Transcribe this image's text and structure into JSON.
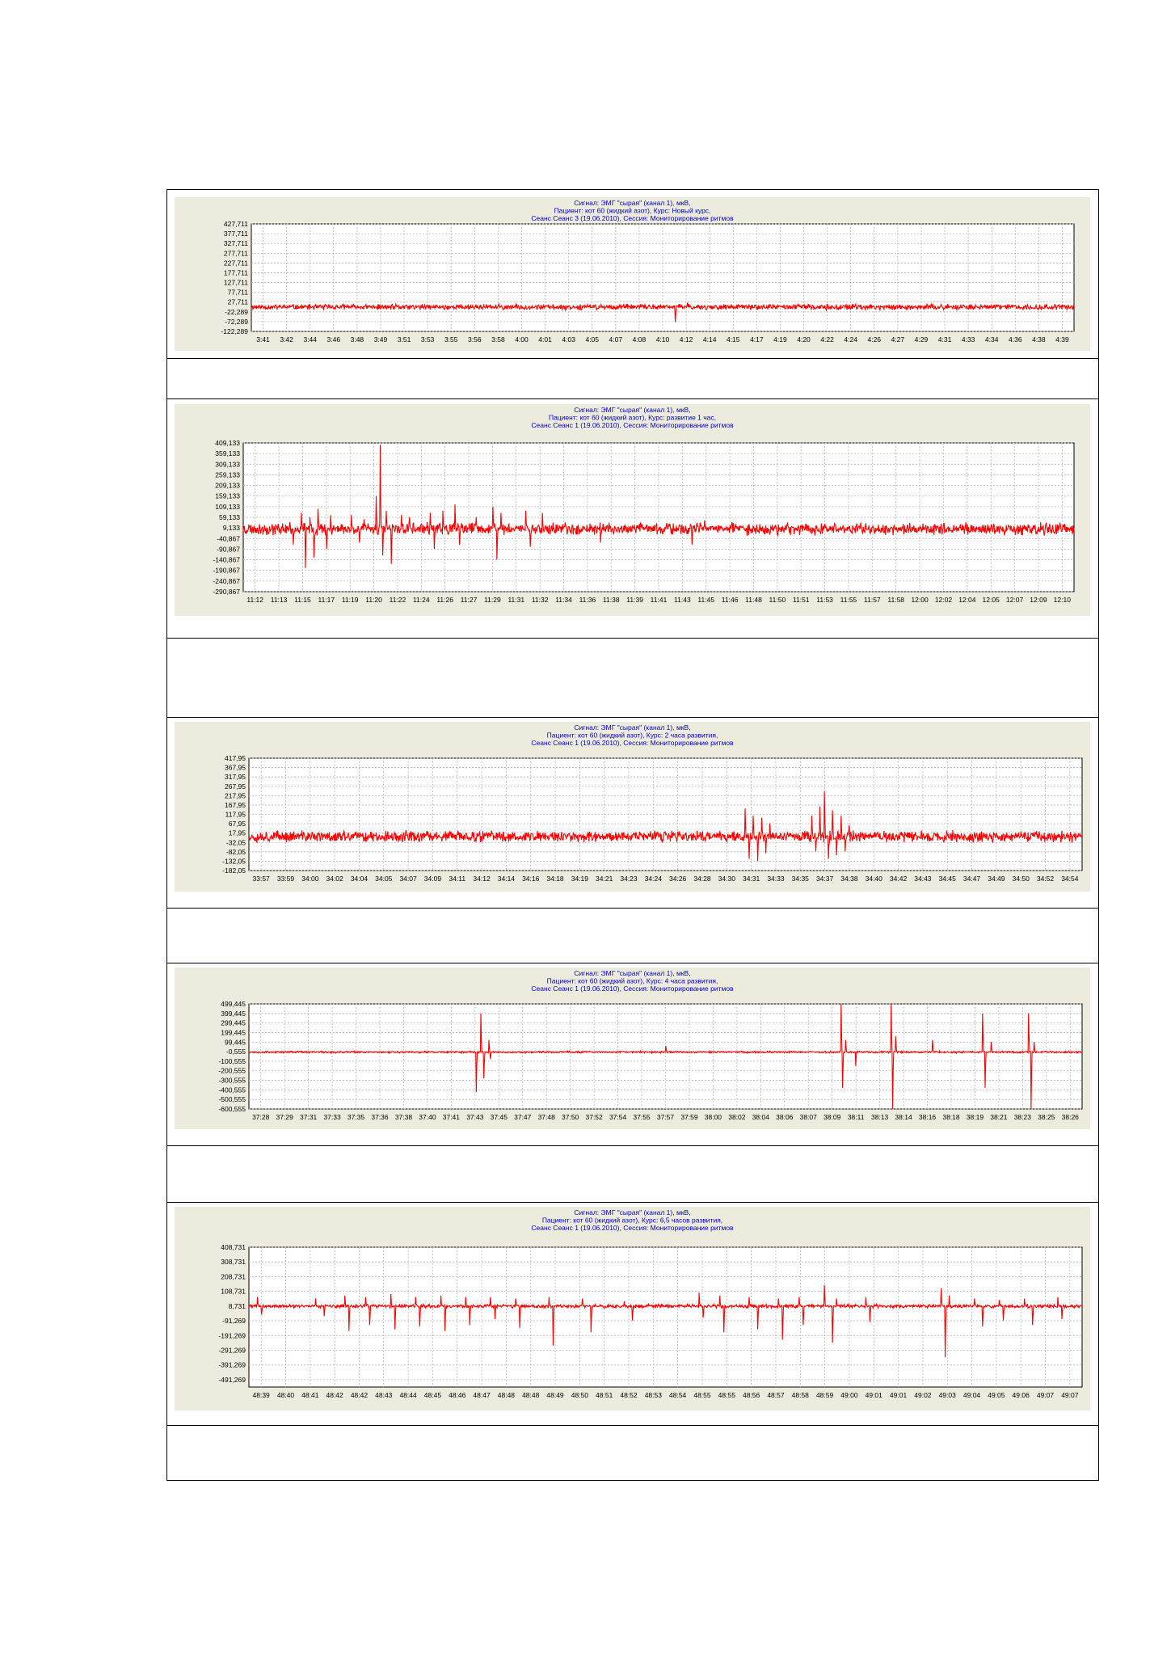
{
  "colors": {
    "signal": "#ff0000",
    "title": "#0000cc",
    "panel_bg": "#ecebdd",
    "plot_bg": "#ffffff",
    "grid": "#b8b8b8"
  },
  "chart_data": [
    {
      "type": "line",
      "title_lines": [
        "Сигнал: ЭМГ \"сырая\" (канал 1), мкВ,",
        "Пациент: кот 60 (жидкий азот), Курс: Новый курс,",
        "Сеанс Сеанс 3 (19.06.2010), Сессия:    Мониторирование  ритмов"
      ],
      "y_ticks": [
        "427,711",
        "377,711",
        "327,711",
        "277,711",
        "227,711",
        "177,711",
        "127,711",
        "77,711",
        "27,711",
        "-22,289",
        "-72,289",
        "-122,289"
      ],
      "ylim": [
        -122.289,
        427.711
      ],
      "x_ticks": [
        "3:41",
        "3:42",
        "3:44",
        "3:46",
        "3:48",
        "3:49",
        "3:51",
        "3:53",
        "3:55",
        "3:56",
        "3:58",
        "4:00",
        "4:01",
        "4:03",
        "4:05",
        "4:07",
        "4:08",
        "4:10",
        "4:12",
        "4:14",
        "4:15",
        "4:17",
        "4:19",
        "4:20",
        "4:22",
        "4:24",
        "4:26",
        "4:27",
        "4:29",
        "4:31",
        "4:33",
        "4:34",
        "4:36",
        "4:38",
        "4:39"
      ],
      "series": [
        {
          "noise": 14,
          "baseline": 2.5,
          "seed": 11,
          "spikes": [
            [
              0.515,
              -75
            ],
            [
              0.53,
              25
            ],
            [
              0.52,
              18
            ]
          ]
        }
      ],
      "grid": true
    },
    {
      "type": "line",
      "title_lines": [
        "Сигнал: ЭМГ \"сырая\" (канал 1), мкВ,",
        "Пациент: кот 60 (жидкий азот), Курс: развитие 1 час,",
        "Сеанс Сеанс 1 (19.06.2010), Сессия:    Мониторирование  ритмов"
      ],
      "y_ticks": [
        "409,133",
        "359,133",
        "309,133",
        "259,133",
        "209,133",
        "159,133",
        "109,133",
        "59,133",
        "9,133",
        "-40,867",
        "-90,867",
        "-140,867",
        "-190,867",
        "-240,867",
        "-290,867"
      ],
      "ylim": [
        -290.867,
        409.133
      ],
      "x_ticks": [
        "11:12",
        "11:13",
        "11:15",
        "11:17",
        "11:19",
        "11:20",
        "11:22",
        "11:24",
        "11:26",
        "11:27",
        "11:29",
        "11:31",
        "11:32",
        "11:34",
        "11:36",
        "11:38",
        "11:39",
        "11:41",
        "11:43",
        "11:45",
        "11:46",
        "11:48",
        "11:50",
        "11:51",
        "11:53",
        "11:55",
        "11:57",
        "11:58",
        "12:00",
        "12:02",
        "12:04",
        "12:05",
        "12:07",
        "12:09",
        "12:10"
      ],
      "series": [
        {
          "noise": 28,
          "baseline": 5,
          "seed": 23,
          "spikes": [
            [
              0.06,
              -70
            ],
            [
              0.07,
              80
            ],
            [
              0.075,
              -180
            ],
            [
              0.08,
              60
            ],
            [
              0.085,
              -130
            ],
            [
              0.09,
              100
            ],
            [
              0.1,
              -90
            ],
            [
              0.105,
              70
            ],
            [
              0.13,
              70
            ],
            [
              0.14,
              -60
            ],
            [
              0.145,
              50
            ],
            [
              0.16,
              160
            ],
            [
              0.165,
              400
            ],
            [
              0.168,
              -120
            ],
            [
              0.172,
              90
            ],
            [
              0.178,
              -160
            ],
            [
              0.19,
              70
            ],
            [
              0.2,
              60
            ],
            [
              0.225,
              80
            ],
            [
              0.23,
              -90
            ],
            [
              0.24,
              90
            ],
            [
              0.255,
              120
            ],
            [
              0.26,
              -70
            ],
            [
              0.28,
              60
            ],
            [
              0.3,
              110
            ],
            [
              0.305,
              -140
            ],
            [
              0.31,
              80
            ],
            [
              0.34,
              90
            ],
            [
              0.345,
              -80
            ],
            [
              0.36,
              80
            ],
            [
              0.43,
              -60
            ],
            [
              0.54,
              -70
            ],
            [
              0.555,
              45
            ]
          ]
        }
      ],
      "grid": true
    },
    {
      "type": "line",
      "title_lines": [
        "Сигнал: ЭМГ \"сырая\" (канал 1), мкВ,",
        "Пациент: кот 60 (жидкий азот), Курс: 2 часа развития,",
        "Сеанс Сеанс 1 (19.06.2010), Сессия:    Мониторирование  ритмов"
      ],
      "y_ticks": [
        "417,95",
        "367,95",
        "317,95",
        "267,95",
        "217,95",
        "167,95",
        "117,95",
        "67,95",
        "17,95",
        "-32,05",
        "-82,05",
        "-132,05",
        "-182,05"
      ],
      "ylim": [
        -182.05,
        417.95
      ],
      "x_ticks": [
        "33:57",
        "33:59",
        "34:00",
        "34:02",
        "34:04",
        "34:05",
        "34:07",
        "34:09",
        "34:11",
        "34:12",
        "34:14",
        "34:16",
        "34:18",
        "34:19",
        "34:21",
        "34:23",
        "34:24",
        "34:26",
        "34:28",
        "34:30",
        "34:31",
        "34:33",
        "34:35",
        "34:37",
        "34:38",
        "34:40",
        "34:42",
        "34:43",
        "34:45",
        "34:47",
        "34:49",
        "34:50",
        "34:52",
        "34:54"
      ],
      "series": [
        {
          "noise": 30,
          "baseline": 0,
          "seed": 37,
          "spikes": [
            [
              0.595,
              150
            ],
            [
              0.6,
              -120
            ],
            [
              0.605,
              110
            ],
            [
              0.61,
              -130
            ],
            [
              0.615,
              100
            ],
            [
              0.62,
              -90
            ],
            [
              0.625,
              70
            ],
            [
              0.675,
              110
            ],
            [
              0.68,
              -80
            ],
            [
              0.685,
              160
            ],
            [
              0.69,
              240
            ],
            [
              0.695,
              -120
            ],
            [
              0.7,
              140
            ],
            [
              0.705,
              -100
            ],
            [
              0.71,
              110
            ],
            [
              0.715,
              -80
            ],
            [
              0.72,
              60
            ]
          ]
        }
      ],
      "grid": true
    },
    {
      "type": "line",
      "title_lines": [
        "Сигнал: ЭМГ \"сырая\" (канал 1), мкВ,",
        "Пациент: кот 60 (жидкий азот), Курс: 4 часа развития,",
        "Сеанс Сеанс 1 (19.06.2010), Сессия:    Мониторирование  ритмов"
      ],
      "y_ticks": [
        "499,445",
        "399,445",
        "299,445",
        "199,445",
        "99,445",
        "-0,555",
        "-100,555",
        "-200,555",
        "-300,555",
        "-400,555",
        "-500,555",
        "-600,555"
      ],
      "ylim": [
        -600.555,
        499.445
      ],
      "x_ticks": [
        "37:28",
        "37:29",
        "37:31",
        "37:33",
        "37:35",
        "37:36",
        "37:38",
        "37:40",
        "37:41",
        "37:43",
        "37:45",
        "37:47",
        "37:48",
        "37:50",
        "37:52",
        "37:54",
        "37:55",
        "37:57",
        "37:59",
        "38:00",
        "38:02",
        "38:04",
        "38:06",
        "38:07",
        "38:09",
        "38:11",
        "38:13",
        "38:14",
        "38:16",
        "38:18",
        "38:19",
        "38:21",
        "38:23",
        "38:25",
        "38:26"
      ],
      "series": [
        {
          "noise": 10,
          "baseline": -5,
          "seed": 53,
          "spikes": [
            [
              0.273,
              -420
            ],
            [
              0.278,
              400
            ],
            [
              0.282,
              -280
            ],
            [
              0.288,
              120
            ],
            [
              0.29,
              -80
            ],
            [
              0.5,
              60
            ],
            [
              0.71,
              500
            ],
            [
              0.712,
              -380
            ],
            [
              0.716,
              120
            ],
            [
              0.728,
              -150
            ],
            [
              0.77,
              500
            ],
            [
              0.772,
              -600
            ],
            [
              0.776,
              160
            ],
            [
              0.82,
              120
            ],
            [
              0.88,
              400
            ],
            [
              0.883,
              -380
            ],
            [
              0.89,
              100
            ],
            [
              0.935,
              400
            ],
            [
              0.938,
              -600
            ],
            [
              0.942,
              100
            ]
          ]
        }
      ],
      "grid": true
    },
    {
      "type": "line",
      "title_lines": [
        "Сигнал: ЭМГ \"сырая\" (канал 1), мкВ,",
        "Пациент: кот 60 (жидкий азот), Курс: 6,5 часов развития,",
        "Сеанс Сеанс 1 (19.06.2010), Сессия:    Мониторирование  ритмов"
      ],
      "y_ticks": [
        "408,731",
        "308,731",
        "208,731",
        "108,731",
        "8,731",
        "-91,269",
        "-191,269",
        "-291,269",
        "-391,269",
        "-491,269"
      ],
      "ylim": [
        -541.269,
        408.731
      ],
      "x_ticks": [
        "48:39",
        "48:40",
        "48:41",
        "48:42",
        "48:42",
        "48:43",
        "48:44",
        "48:45",
        "48:46",
        "48:47",
        "48:48",
        "48:48",
        "48:49",
        "48:50",
        "48:51",
        "48:52",
        "48:53",
        "48:54",
        "48:55",
        "48:55",
        "48:56",
        "48:57",
        "48:58",
        "48:59",
        "49:00",
        "49:01",
        "49:01",
        "49:02",
        "49:03",
        "49:04",
        "49:05",
        "49:06",
        "49:07",
        "49:07"
      ],
      "series": [
        {
          "noise": 12,
          "baseline": 8,
          "seed": 71,
          "spikes": [
            [
              0.01,
              70
            ],
            [
              0.015,
              -50
            ],
            [
              0.08,
              60
            ],
            [
              0.09,
              -60
            ],
            [
              0.115,
              80
            ],
            [
              0.12,
              -160
            ],
            [
              0.14,
              70
            ],
            [
              0.145,
              -120
            ],
            [
              0.17,
              90
            ],
            [
              0.175,
              -150
            ],
            [
              0.2,
              70
            ],
            [
              0.205,
              -130
            ],
            [
              0.23,
              80
            ],
            [
              0.235,
              -160
            ],
            [
              0.26,
              70
            ],
            [
              0.265,
              -120
            ],
            [
              0.29,
              70
            ],
            [
              0.295,
              -80
            ],
            [
              0.32,
              60
            ],
            [
              0.325,
              -140
            ],
            [
              0.36,
              70
            ],
            [
              0.365,
              -260
            ],
            [
              0.4,
              60
            ],
            [
              0.41,
              -170
            ],
            [
              0.45,
              40
            ],
            [
              0.46,
              -90
            ],
            [
              0.54,
              100
            ],
            [
              0.545,
              -70
            ],
            [
              0.565,
              80
            ],
            [
              0.57,
              -170
            ],
            [
              0.6,
              70
            ],
            [
              0.61,
              -150
            ],
            [
              0.635,
              60
            ],
            [
              0.64,
              -220
            ],
            [
              0.66,
              70
            ],
            [
              0.665,
              -120
            ],
            [
              0.69,
              150
            ],
            [
              0.7,
              -240
            ],
            [
              0.705,
              60
            ],
            [
              0.74,
              70
            ],
            [
              0.745,
              -100
            ],
            [
              0.83,
              130
            ],
            [
              0.835,
              -340
            ],
            [
              0.84,
              80
            ],
            [
              0.87,
              60
            ],
            [
              0.88,
              -130
            ],
            [
              0.9,
              50
            ],
            [
              0.905,
              -90
            ],
            [
              0.93,
              60
            ],
            [
              0.94,
              -120
            ],
            [
              0.97,
              70
            ],
            [
              0.975,
              -80
            ]
          ]
        }
      ],
      "grid": true
    }
  ]
}
